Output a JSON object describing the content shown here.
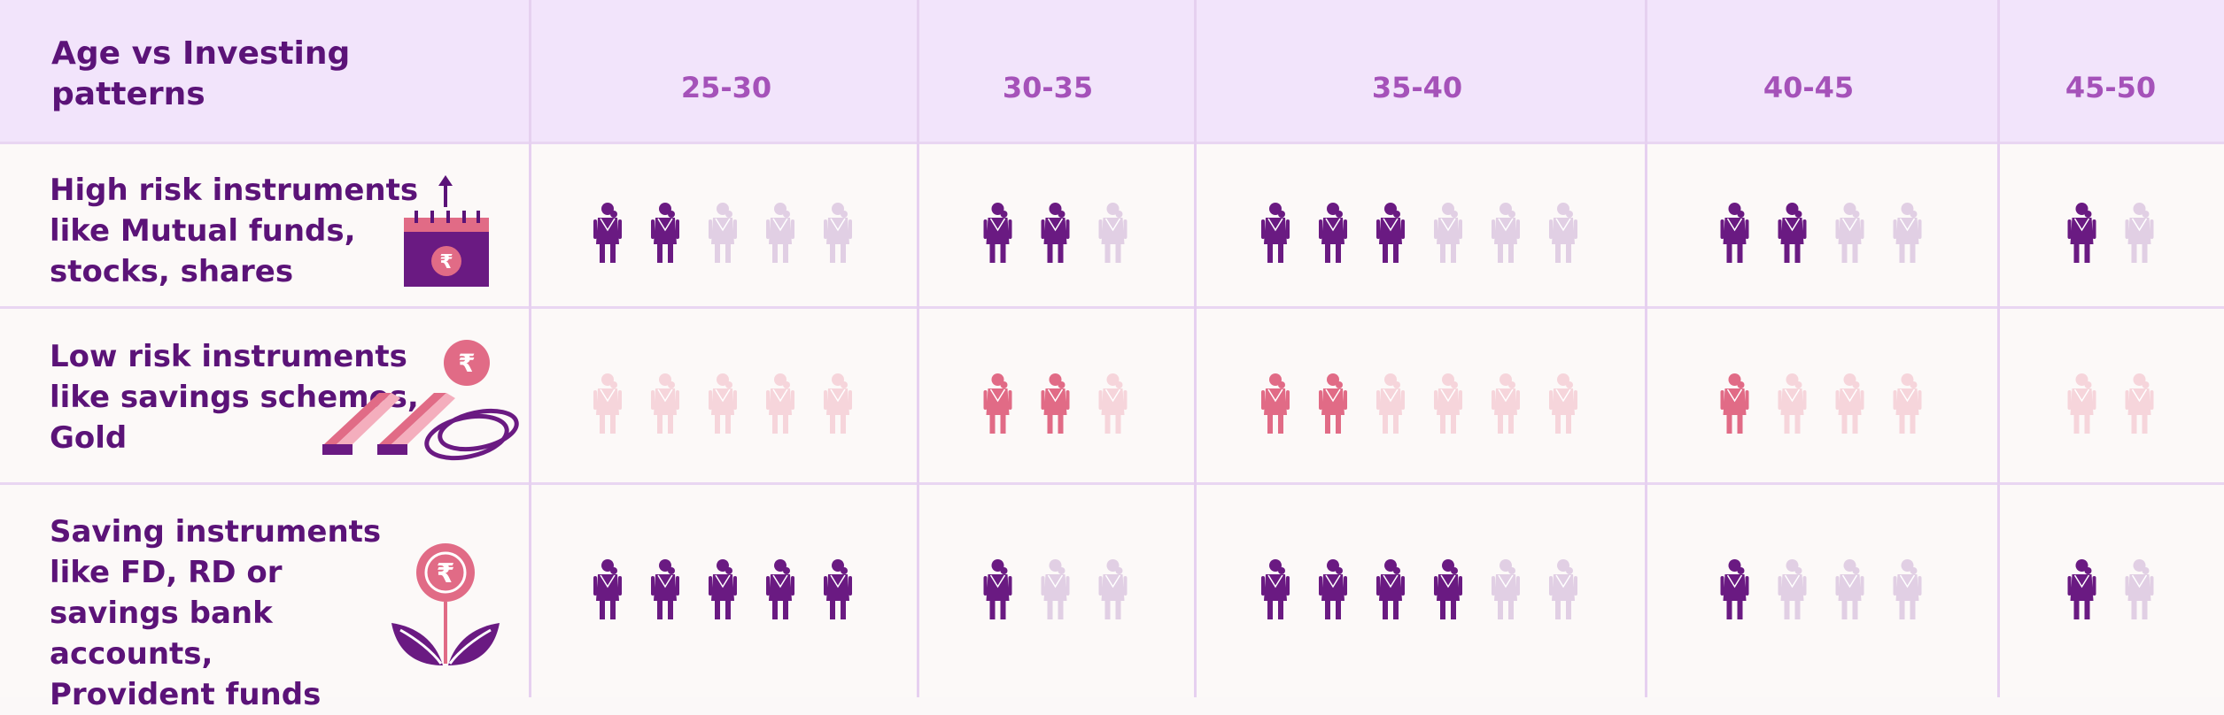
{
  "chart_data": {
    "type": "pictogram-table",
    "title": "Age vs Investing patterns",
    "columns": [
      "25-30",
      "30-35",
      "35-40",
      "40-45",
      "45-50"
    ],
    "rows": [
      {
        "label": "High risk instruments like Mutual funds, stocks, shares",
        "icon": "calendar-rupee-icon",
        "filled_color": "#6a1a82",
        "empty_color": "#e1cfe4",
        "cells": [
          {
            "filled": 2,
            "total": 5
          },
          {
            "filled": 2,
            "total": 3
          },
          {
            "filled": 3,
            "total": 6
          },
          {
            "filled": 2,
            "total": 4
          },
          {
            "filled": 1,
            "total": 2
          }
        ]
      },
      {
        "label": "Low risk instruments like savings schemes, Gold",
        "icon": "gold-bars-rupee-icon",
        "filled_color": "#e16b86",
        "empty_color": "#f6d5db",
        "cells": [
          {
            "filled": 0,
            "total": 5
          },
          {
            "filled": 2,
            "total": 3
          },
          {
            "filled": 2,
            "total": 6
          },
          {
            "filled": 1,
            "total": 4
          },
          {
            "filled": 0,
            "total": 2
          }
        ]
      },
      {
        "label": "Saving instruments like FD, RD or savings bank accounts, Provident funds",
        "icon": "rupee-plant-icon",
        "filled_color": "#6a1a82",
        "empty_color": "#e1cfe4",
        "cells": [
          {
            "filled": 5,
            "total": 5
          },
          {
            "filled": 1,
            "total": 3
          },
          {
            "filled": 4,
            "total": 6
          },
          {
            "filled": 1,
            "total": 4
          },
          {
            "filled": 1,
            "total": 2
          }
        ]
      }
    ]
  },
  "rupee_symbol": "₹",
  "colors": {
    "header_bg": "#f2e4fb",
    "row_bg": "#fcf9f8",
    "grid": "#e9d6f2",
    "title_text": "#5b1378",
    "age_text": "#a552b9",
    "accent_pink": "#e16b86",
    "accent_purple": "#6a1a82"
  }
}
